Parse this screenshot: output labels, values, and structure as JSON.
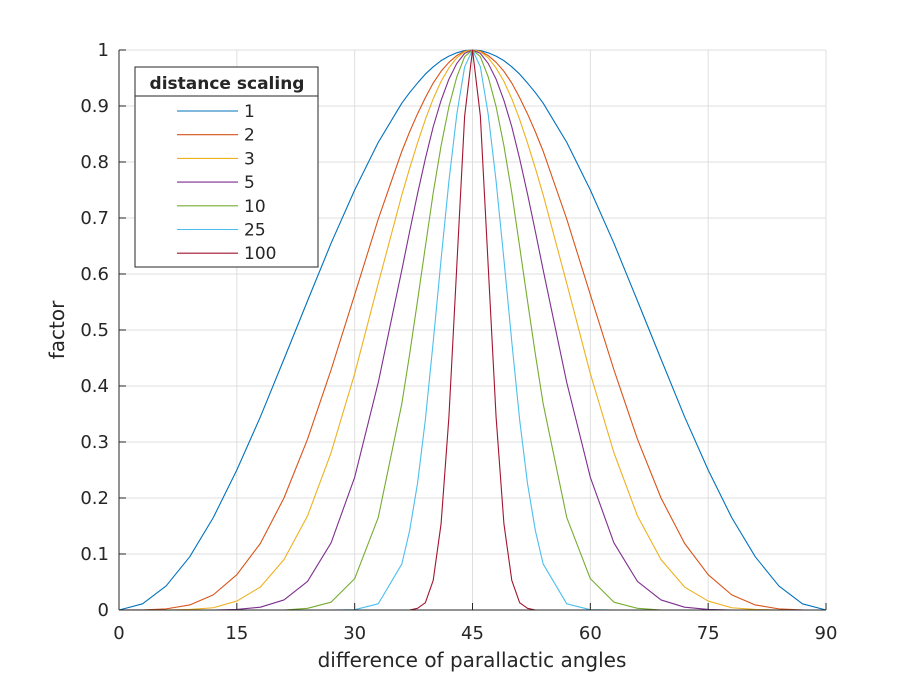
{
  "chart_data": {
    "type": "line",
    "title": "",
    "xlabel": "difference of parallactic angles",
    "ylabel": "factor",
    "xlim": [
      0,
      90
    ],
    "ylim": [
      0,
      1
    ],
    "xticks": [
      0,
      15,
      30,
      45,
      60,
      75,
      90
    ],
    "yticks": [
      0,
      0.1,
      0.2,
      0.3,
      0.4,
      0.5,
      0.6,
      0.7,
      0.8,
      0.9,
      1
    ],
    "grid": true,
    "legend": {
      "title": "distance scaling",
      "position": "top-left"
    },
    "x": [
      0,
      3,
      6,
      9,
      12,
      15,
      18,
      21,
      24,
      27,
      30,
      33,
      36,
      37,
      38,
      39,
      40,
      41,
      42,
      43,
      44,
      45,
      46,
      47,
      48,
      49,
      50,
      51,
      52,
      53,
      54,
      57,
      60,
      63,
      66,
      69,
      72,
      75,
      78,
      81,
      84,
      87,
      90
    ],
    "series": [
      {
        "name": "1",
        "color": "#0072BD",
        "values": [
          0,
          0.011,
          0.043,
          0.095,
          0.165,
          0.25,
          0.345,
          0.448,
          0.552,
          0.655,
          0.75,
          0.835,
          0.905,
          0.924,
          0.941,
          0.957,
          0.97,
          0.981,
          0.989,
          0.995,
          0.999,
          1,
          0.999,
          0.995,
          0.989,
          0.981,
          0.97,
          0.957,
          0.941,
          0.924,
          0.905,
          0.835,
          0.75,
          0.655,
          0.552,
          0.448,
          0.345,
          0.25,
          0.165,
          0.095,
          0.043,
          0.011,
          0
        ]
      },
      {
        "name": "2",
        "color": "#D95319",
        "values": [
          0,
          0.0001,
          0.002,
          0.009,
          0.027,
          0.063,
          0.119,
          0.2,
          0.305,
          0.429,
          0.563,
          0.698,
          0.819,
          0.854,
          0.886,
          0.915,
          0.941,
          0.962,
          0.978,
          0.99,
          0.998,
          1,
          0.998,
          0.99,
          0.978,
          0.962,
          0.941,
          0.915,
          0.886,
          0.854,
          0.819,
          0.698,
          0.563,
          0.429,
          0.305,
          0.2,
          0.119,
          0.063,
          0.027,
          0.009,
          0.002,
          0.0001,
          0
        ]
      },
      {
        "name": "3",
        "color": "#EDB120",
        "values": [
          0,
          0,
          0,
          0.001,
          0.004,
          0.016,
          0.041,
          0.09,
          0.168,
          0.281,
          0.422,
          0.583,
          0.741,
          0.789,
          0.834,
          0.876,
          0.913,
          0.944,
          0.968,
          0.986,
          0.997,
          1,
          0.997,
          0.986,
          0.968,
          0.944,
          0.913,
          0.876,
          0.834,
          0.789,
          0.741,
          0.583,
          0.422,
          0.281,
          0.168,
          0.09,
          0.041,
          0.016,
          0.004,
          0.001,
          0,
          0,
          0
        ]
      },
      {
        "name": "5",
        "color": "#7E2F8E",
        "values": [
          0,
          0,
          0,
          0,
          0,
          0.001,
          0.005,
          0.018,
          0.051,
          0.12,
          0.237,
          0.406,
          0.607,
          0.676,
          0.743,
          0.806,
          0.863,
          0.91,
          0.948,
          0.976,
          0.994,
          1,
          0.994,
          0.976,
          0.948,
          0.91,
          0.863,
          0.806,
          0.743,
          0.676,
          0.607,
          0.406,
          0.237,
          0.12,
          0.051,
          0.018,
          0.005,
          0.001,
          0,
          0,
          0,
          0,
          0
        ]
      },
      {
        "name": "10",
        "color": "#77AC30",
        "values": [
          0,
          0,
          0,
          0,
          0,
          0,
          0,
          0,
          0.003,
          0.014,
          0.056,
          0.165,
          0.368,
          0.457,
          0.552,
          0.649,
          0.745,
          0.829,
          0.899,
          0.952,
          0.988,
          1,
          0.988,
          0.952,
          0.899,
          0.829,
          0.745,
          0.649,
          0.552,
          0.457,
          0.368,
          0.165,
          0.056,
          0.014,
          0.003,
          0,
          0,
          0,
          0,
          0,
          0,
          0,
          0
        ]
      },
      {
        "name": "25",
        "color": "#4DBEEE",
        "values": [
          0,
          0,
          0,
          0,
          0,
          0,
          0,
          0,
          0,
          0,
          0.0006,
          0.011,
          0.082,
          0.142,
          0.226,
          0.34,
          0.479,
          0.626,
          0.766,
          0.885,
          0.97,
          1,
          0.97,
          0.885,
          0.766,
          0.626,
          0.479,
          0.34,
          0.226,
          0.142,
          0.082,
          0.011,
          0.0006,
          0,
          0,
          0,
          0,
          0,
          0,
          0,
          0,
          0,
          0
        ]
      },
      {
        "name": "100",
        "color": "#A2142F",
        "values": [
          0,
          0,
          0,
          0,
          0,
          0,
          0,
          0,
          0,
          0,
          0,
          0,
          0,
          0,
          0.003,
          0.013,
          0.053,
          0.154,
          0.345,
          0.614,
          0.882,
          1,
          0.882,
          0.614,
          0.345,
          0.154,
          0.053,
          0.013,
          0.003,
          0,
          0,
          0,
          0,
          0,
          0,
          0,
          0,
          0,
          0,
          0,
          0,
          0,
          0
        ]
      }
    ]
  }
}
